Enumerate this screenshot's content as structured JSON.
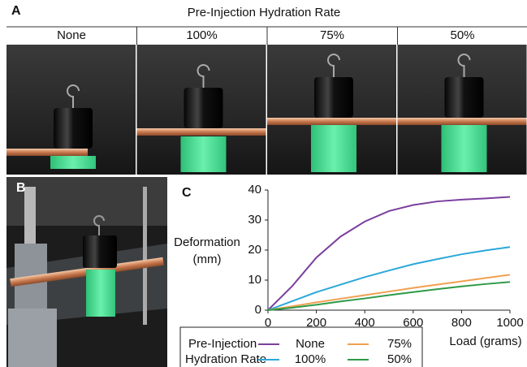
{
  "figure": {
    "panels": [
      "A",
      "B",
      "C"
    ],
    "title": "Pre-Injection Hydration Rate",
    "columns": [
      "None",
      "100%",
      "75%",
      "50%"
    ]
  },
  "chart_data": {
    "type": "line",
    "x": [
      0,
      100,
      200,
      300,
      400,
      500,
      600,
      700,
      800,
      900,
      1000
    ],
    "xlabel": "Load (grams)",
    "ylabel": [
      "Deformation",
      "(mm)"
    ],
    "legend_title": [
      "Pre-Injection",
      "Hydration Rate"
    ],
    "series": [
      {
        "name": "None",
        "color": "#7b3f9e",
        "values": [
          0,
          8,
          17.5,
          24.5,
          29.5,
          33,
          35,
          36.2,
          36.8,
          37.2,
          37.7
        ]
      },
      {
        "name": "100%",
        "color": "#2aa8d8",
        "values": [
          0,
          3,
          6,
          8.5,
          11,
          13.2,
          15.3,
          17,
          18.6,
          19.9,
          21
        ]
      },
      {
        "name": "75%",
        "color": "#f0a050",
        "values": [
          0,
          1.3,
          2.6,
          3.8,
          5,
          6.2,
          7.4,
          8.5,
          9.6,
          10.7,
          11.8
        ]
      },
      {
        "name": "50%",
        "color": "#2e9a48",
        "values": [
          0,
          0.8,
          1.8,
          2.9,
          3.9,
          5,
          6,
          7,
          7.9,
          8.7,
          9.4
        ]
      }
    ],
    "xlim": [
      0,
      1000
    ],
    "xticks": [
      0,
      200,
      400,
      600,
      800,
      1000
    ],
    "ylim": [
      0,
      40
    ],
    "yticks": [
      0,
      10,
      20,
      30,
      40
    ]
  }
}
